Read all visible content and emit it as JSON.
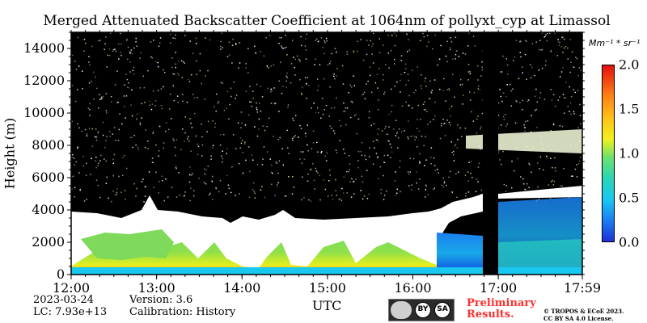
{
  "chart_data": {
    "type": "heatmap",
    "title": "Merged Attenuated Backscatter Coefficient at 1064nm of pollyxt_cyp at Limassol",
    "xlabel": "UTC",
    "ylabel": "Height (m)",
    "x_range": [
      "12:00",
      "17:59"
    ],
    "ylim": [
      0,
      15000
    ],
    "x_ticks": [
      "12:00",
      "13:00",
      "14:00",
      "15:00",
      "16:00",
      "17:00",
      "17:59"
    ],
    "y_ticks": [
      0,
      2000,
      4000,
      6000,
      8000,
      10000,
      12000,
      14000
    ],
    "colorbar": {
      "unit_label": "Mm⁻¹ * sr⁻¹",
      "range": [
        0.0,
        2.0
      ],
      "ticks": [
        "0.0",
        "0.5",
        "1.0",
        "1.5",
        "2.0"
      ],
      "colormap": "jet"
    },
    "no_data_gap": [
      "16:49",
      "16:59"
    ],
    "cloud_layer_top_m": [
      3900,
      3600,
      4800,
      3200,
      3000,
      3500,
      3100,
      3400,
      3500,
      4100,
      4400,
      5000,
      5300
    ],
    "cloud_layer_times": [
      "12:00",
      "12:30",
      "13:00",
      "13:30",
      "14:00",
      "14:30",
      "15:00",
      "15:30",
      "16:00",
      "16:20",
      "16:40",
      "17:00",
      "17:59"
    ]
  },
  "meta": {
    "date": "2023-03-24",
    "lc": "LC: 7.93e+13",
    "version": "Version: 3.6",
    "calibration": "Calibration: History",
    "preliminary_line1": "Preliminary",
    "preliminary_line2": "Results.",
    "copyright_line1": "© TROPOS & ECoE 2023.",
    "copyright_line2": "CC BY SA 4.0 License.",
    "cc_by": "BY",
    "cc_sa": "SA"
  },
  "colors": {
    "background": "#000000",
    "cloud": "#ffffff",
    "aerosol": "#8ee04a",
    "noise": "#ffffff",
    "prelim": "#ff3030"
  }
}
